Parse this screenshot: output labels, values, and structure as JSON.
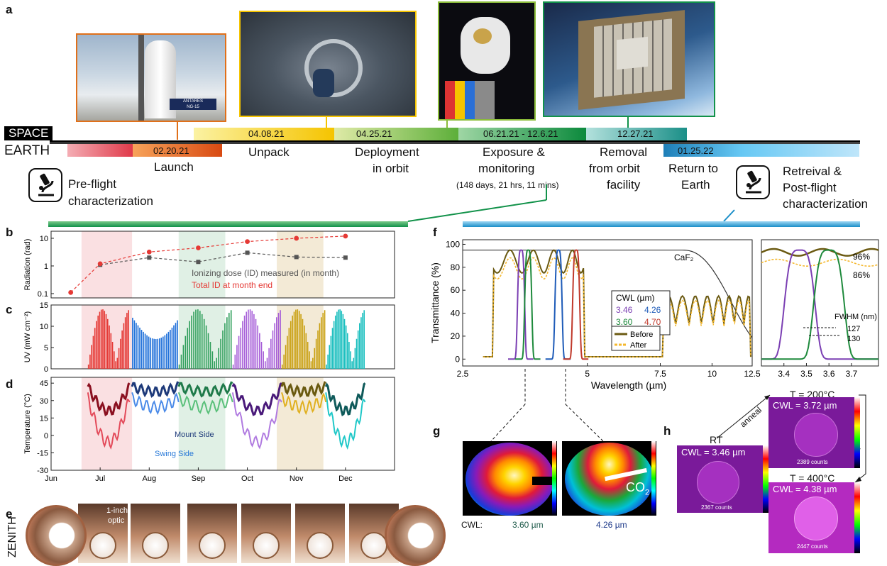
{
  "panels": {
    "a": "a",
    "b": "b",
    "c": "c",
    "d": "d",
    "e": "e",
    "f": "f",
    "g": "g",
    "h": "h"
  },
  "timeline": {
    "space_label": "SPACE",
    "earth_label": "EARTH",
    "dates": [
      "02.20.21",
      "04.08.21",
      "04.25.21",
      "06.21.21 - 12.6.21",
      "12.27.21",
      "01.25.22"
    ],
    "events": {
      "launch": "Launch",
      "unpack": "Unpack",
      "deploy_1": "Deployment",
      "deploy_2": "in orbit",
      "exposure_1": "Exposure &",
      "exposure_2": "monitoring",
      "exposure_duration": "(148 days, 21 hrs, 11 mins)",
      "removal_1": "Removal",
      "removal_2": "from orbit",
      "removal_3": "facility",
      "return_1": "Return to",
      "return_2": "Earth",
      "preflight_1": "Pre-flight",
      "preflight_2": "characterization",
      "postflight_1": "Retreival &",
      "postflight_2": "Post-flight",
      "postflight_3": "characterization"
    },
    "colors": {
      "launch": "#e0501a",
      "unpack": "#f5c400",
      "deploy": "#8cbd3a",
      "exposure": "#12924a",
      "removal": "#27a8a0",
      "return": "#1a8ec8"
    }
  },
  "launch_photo": {
    "caption_1": "ANTARES",
    "caption_2": "NG-15"
  },
  "chart_data": [
    {
      "type": "scatter",
      "panel": "b",
      "title": "",
      "ylabel": "Radiation (rad)",
      "yscale": "log",
      "ylim": [
        0.07,
        18
      ],
      "yticks": [
        0.1,
        1,
        10
      ],
      "xlim": [
        0,
        7
      ],
      "series": [
        {
          "name": "Ionizing dose (ID) measured (in month)",
          "color": "#555555",
          "x": [
            1,
            2,
            3,
            4,
            5,
            6
          ],
          "y": [
            1.1,
            2.0,
            1.4,
            3.0,
            2.1,
            2.0
          ]
        },
        {
          "name": "Total ID at month end",
          "color": "#e53935",
          "x": [
            0.4,
            1,
            2,
            3,
            4,
            5,
            6
          ],
          "y": [
            0.11,
            1.2,
            3.2,
            4.5,
            7.6,
            10,
            12
          ]
        }
      ],
      "legend": [
        "Ionizing dose (ID) measured (in month)",
        "Total ID at month end"
      ]
    },
    {
      "type": "bar",
      "panel": "c",
      "ylabel": "UV (mW cm⁻²)",
      "ylim": [
        0,
        15
      ],
      "yticks": [
        0,
        5,
        10,
        15
      ],
      "xlim": [
        0,
        7
      ]
    },
    {
      "type": "line",
      "panel": "d",
      "ylabel": "Temperature (°C)",
      "ylim": [
        -30,
        50
      ],
      "yticks": [
        -30,
        -15,
        0,
        15,
        30,
        45
      ],
      "xlim": [
        0,
        7
      ],
      "xticklabels": [
        "Jun",
        "Jul",
        "Aug",
        "Sep",
        "Oct",
        "Nov",
        "Dec"
      ],
      "annotations": [
        "Mount Side",
        "Swing Side"
      ]
    },
    {
      "type": "line",
      "panel": "f",
      "xlabel": "Wavelength (µm)",
      "ylabel": "Transmittance (%)",
      "xscale": "log",
      "xlim": [
        2.5,
        12.5
      ],
      "xticks": [
        2.5,
        5,
        7.5,
        10,
        12.5
      ],
      "ylim": [
        -6,
        104
      ],
      "yticks": [
        0,
        20,
        40,
        60,
        80,
        100
      ],
      "substrate_label": "CaF₂",
      "legend_title": "CWL (µm)",
      "cwl_values": [
        {
          "cwl": "3.46",
          "center": 3.46,
          "color": "#7b3fb3"
        },
        {
          "cwl": "4.26",
          "center": 4.26,
          "color": "#1e5bb8"
        },
        {
          "cwl": "3.60",
          "center": 3.6,
          "color": "#1e8a3c"
        },
        {
          "cwl": "4.70",
          "center": 4.7,
          "color": "#c0392b"
        }
      ],
      "series": [
        {
          "name": "Before",
          "color": "#6b5a12"
        },
        {
          "name": "After",
          "color": "#f5b82e"
        }
      ]
    },
    {
      "type": "line",
      "panel": "f-inset",
      "xlim": [
        3.3,
        3.82
      ],
      "xticks": [
        3.4,
        3.5,
        3.6,
        3.7
      ],
      "annotations": [
        "96%",
        "86%"
      ],
      "fwhm_label": "FWHM (nm)",
      "fwhm_values": [
        "127",
        "130"
      ]
    }
  ],
  "panel_e": {
    "label": "ZENITH",
    "optic_1": "1-inch",
    "optic_2": "optic"
  },
  "panel_g": {
    "cwl_label": "CWL:",
    "cwl_1": "3.60 µm",
    "cwl_2": "4.26 µm",
    "co2": "CO",
    "co2_sub": "2"
  },
  "panel_h": {
    "rt": "RT",
    "anneal": "anneal",
    "anneal_2": "anneal",
    "t200": "T = 200°C",
    "t400": "T = 400°C",
    "img1_cwl": "CWL = 3.46 µm",
    "img1_counts": "2367 counts",
    "img2_cwl": "CWL = 3.72 µm",
    "img2_counts": "2389 counts",
    "img3_cwl": "CWL = 4.38 µm",
    "img3_counts": "2447 counts"
  }
}
